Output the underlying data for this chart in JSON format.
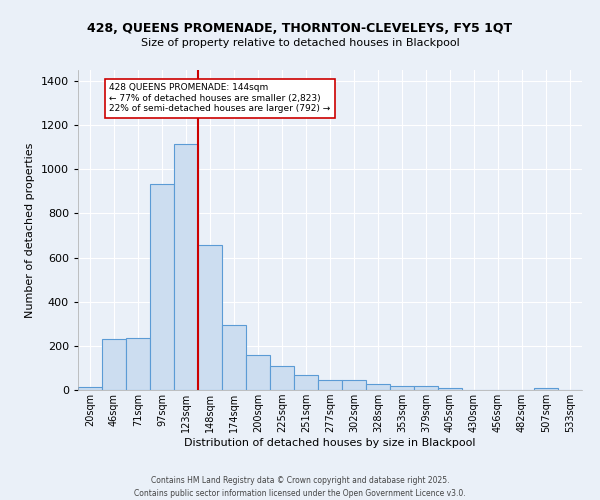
{
  "title_line1": "428, QUEENS PROMENADE, THORNTON-CLEVELEYS, FY5 1QT",
  "title_line2": "Size of property relative to detached houses in Blackpool",
  "xlabel": "Distribution of detached houses by size in Blackpool",
  "ylabel": "Number of detached properties",
  "bar_labels": [
    "20sqm",
    "46sqm",
    "71sqm",
    "97sqm",
    "123sqm",
    "148sqm",
    "174sqm",
    "200sqm",
    "225sqm",
    "251sqm",
    "277sqm",
    "302sqm",
    "328sqm",
    "353sqm",
    "379sqm",
    "405sqm",
    "430sqm",
    "456sqm",
    "482sqm",
    "507sqm",
    "533sqm"
  ],
  "bar_values": [
    15,
    230,
    235,
    935,
    1115,
    655,
    295,
    160,
    110,
    70,
    45,
    45,
    25,
    20,
    20,
    10,
    0,
    0,
    0,
    10,
    0
  ],
  "bar_color": "#ccddf0",
  "bar_edge_color": "#5b9bd5",
  "red_line_color": "#cc0000",
  "annotation_text": "428 QUEENS PROMENADE: 144sqm\n← 77% of detached houses are smaller (2,823)\n22% of semi-detached houses are larger (792) →",
  "annotation_box_color": "#ffffff",
  "annotation_box_edge": "#cc0000",
  "ylim": [
    0,
    1450
  ],
  "yticks": [
    0,
    200,
    400,
    600,
    800,
    1000,
    1200,
    1400
  ],
  "background_color": "#eaf0f8",
  "grid_color": "#ffffff",
  "footer_line1": "Contains HM Land Registry data © Crown copyright and database right 2025.",
  "footer_line2": "Contains public sector information licensed under the Open Government Licence v3.0."
}
